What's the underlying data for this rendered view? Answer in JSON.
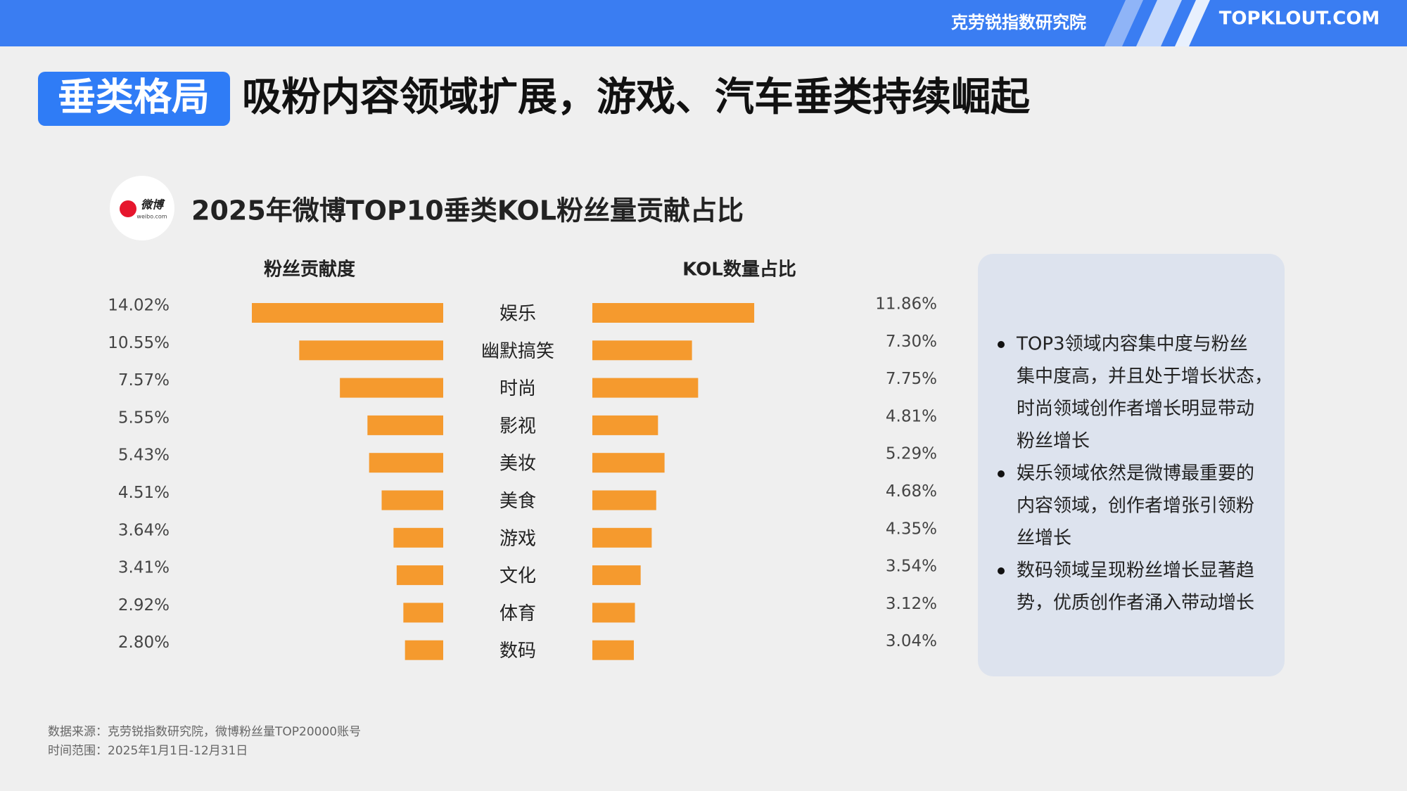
{
  "header": {
    "brand": "克劳锐指数研究院",
    "logo": "TOPKLOUT.COM"
  },
  "slide": {
    "tag": "垂类格局",
    "title": "吸粉内容领域扩展，游戏、汽车垂类持续崛起"
  },
  "logo_badge": {
    "text": "微博",
    "sub": "weibo.com"
  },
  "chart_data": {
    "type": "bar",
    "title": "2025年微博TOP10垂类KOL粉丝量贡献占比",
    "categories": [
      "娱乐",
      "幽默搞笑",
      "时尚",
      "影视",
      "美妆",
      "美食",
      "游戏",
      "文化",
      "体育",
      "数码"
    ],
    "series": [
      {
        "name": "粉丝贡献度",
        "color": "#f59a2e",
        "values": [
          14.02,
          10.55,
          7.57,
          5.55,
          5.43,
          4.51,
          3.64,
          3.41,
          2.92,
          2.8
        ],
        "value_labels": [
          "14.02%",
          "10.55%",
          "7.57%",
          "5.55%",
          "5.43%",
          "4.51%",
          "3.64%",
          "3.41%",
          "2.92%",
          "2.80%"
        ]
      },
      {
        "name": "KOL数量占比",
        "color": "#f59a2e",
        "values": [
          11.86,
          7.3,
          7.75,
          4.81,
          5.29,
          4.68,
          4.35,
          3.54,
          3.12,
          3.04
        ],
        "value_labels": [
          "11.86%",
          "7.30%",
          "7.75%",
          "4.81%",
          "5.29%",
          "4.68%",
          "4.35%",
          "3.54%",
          "3.12%",
          "3.04%"
        ]
      }
    ]
  },
  "notes": [
    [
      "TOP3领域内容集中度与粉丝",
      "集中度高，并且处于增长状态，",
      "时尚领域创作者增长明显带动",
      "粉丝增长"
    ],
    [
      "娱乐领域依然是微博最重要的",
      "内容领域，创作者增张引领粉",
      "丝增长"
    ],
    [
      "数码领域呈现粉丝增长显著趋",
      "势，优质创作者涌入带动增长"
    ]
  ],
  "source": [
    "数据来源：克劳锐指数研究院，微博粉丝量TOP20000账号",
    "时间范围：2025年1月1日-12月31日"
  ]
}
